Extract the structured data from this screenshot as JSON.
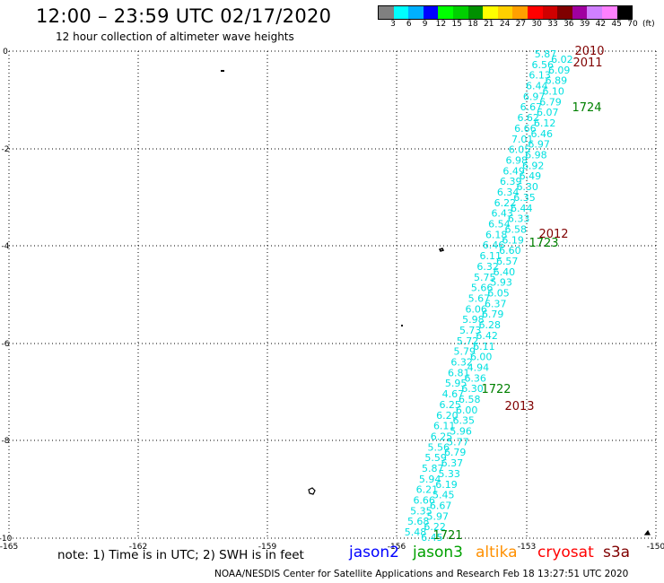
{
  "header": {
    "title": "12:00 – 23:59 UTC 02/17/2020",
    "subtitle": "12 hour collection of altimeter wave heights"
  },
  "colorbar": {
    "colors": [
      "#808080",
      "#00ffff",
      "#00b0ff",
      "#0000ff",
      "#00ff00",
      "#00d000",
      "#009000",
      "#ffff00",
      "#ffd000",
      "#ffa000",
      "#ff0000",
      "#d00000",
      "#800000",
      "#a000a0",
      "#d080ff",
      "#ff80ff",
      "#000000"
    ],
    "labels": [
      "3",
      "6",
      "9",
      "12",
      "15",
      "18",
      "21",
      "24",
      "27",
      "30",
      "33",
      "36",
      "39",
      "42",
      "45",
      "70",
      "(ft)"
    ]
  },
  "axes": {
    "x_labels": [
      "-165",
      "-162",
      "-159",
      "-156",
      "-153",
      "-150"
    ],
    "y_labels": [
      "0",
      "-2",
      "-4",
      "-6",
      "-8",
      "-10"
    ]
  },
  "tracks": {
    "east": {
      "color": "#00e0e0",
      "values": [
        "5.87",
        "6.02",
        "6.56",
        "6.09",
        "6.13",
        "6.89",
        "6.44",
        "6.10",
        "6.97",
        "6.79",
        "6.67",
        "6.07",
        "6.62",
        "6.12",
        "6.66",
        "6.46",
        "7.01",
        "6.97",
        "6.05",
        "6.98",
        "6.98",
        "6.92",
        "6.49",
        "6.49",
        "6.39",
        "6.30",
        "6.34",
        "6.35",
        "6.22",
        "6.44",
        "6.43",
        "6.33",
        "6.54",
        "6.58",
        "6.18",
        "6.19",
        "6.46",
        "6.60",
        "6.11",
        "6.57",
        "6.32",
        "6.40",
        "5.75",
        "5.93",
        "5.66",
        "6.05",
        "5.67",
        "6.37",
        "6.06",
        "6.79",
        "5.98",
        "6.28",
        "5.73",
        "6.42",
        "5.72",
        "6.11",
        "5.79",
        "6.00",
        "6.32",
        "4.94",
        "6.81",
        "6.36",
        "5.95",
        "6.30",
        "4.67",
        "6.58",
        "6.25",
        "6.00",
        "6.20",
        "6.35",
        "6.11",
        "5.96",
        "6.25",
        "5.77",
        "5.56",
        "6.79",
        "5.59",
        "6.37",
        "5.87",
        "5.33",
        "5.94",
        "6.19",
        "6.21",
        "5.45",
        "6.66",
        "6.67",
        "5.35",
        "5.97",
        "5.68",
        "6.22",
        "5.48",
        "6.45"
      ]
    },
    "labels": [
      {
        "text": "2010",
        "color": "#800000"
      },
      {
        "text": "2011",
        "color": "#800000"
      },
      {
        "text": "1724",
        "color": "#008000"
      },
      {
        "text": "2012",
        "color": "#800000"
      },
      {
        "text": "1723",
        "color": "#008000"
      },
      {
        "text": "1722",
        "color": "#008000"
      },
      {
        "text": "2013",
        "color": "#800000"
      },
      {
        "text": "1721",
        "color": "#008000"
      }
    ]
  },
  "footer": {
    "note": "note: 1) Time is in UTC; 2) SWH is in feet",
    "satellites": [
      {
        "name": "jason2",
        "color": "#0000ff"
      },
      {
        "name": "jason3",
        "color": "#00a000"
      },
      {
        "name": "altika",
        "color": "#ff9000"
      },
      {
        "name": "cryosat",
        "color": "#ff0000"
      },
      {
        "name": "s3a",
        "color": "#800000"
      }
    ],
    "credit": "NOAA/NESDIS Center for Satellite Applications and Research     Feb 18 13:27:51 UTC 2020"
  }
}
